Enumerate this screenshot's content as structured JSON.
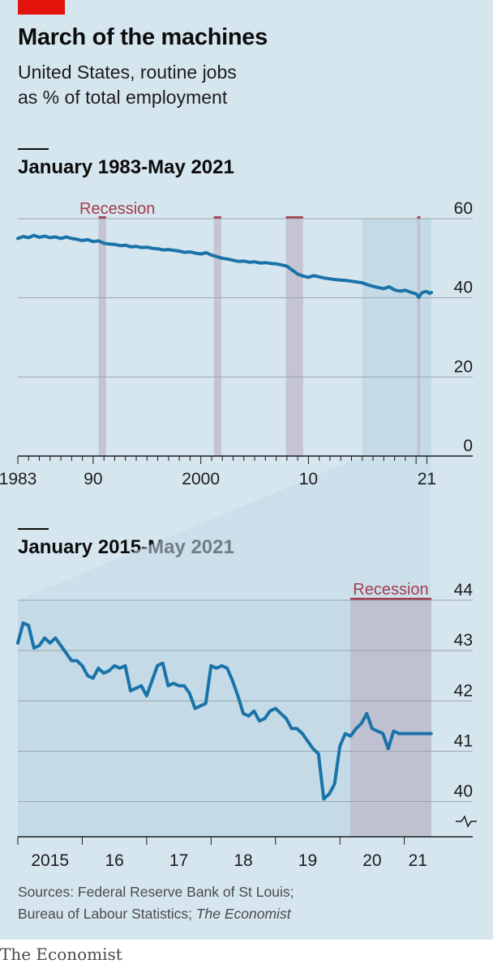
{
  "header": {
    "title": "March of the machines",
    "subtitle_line1": "United States, routine jobs",
    "subtitle_line2": "as % of total employment"
  },
  "colors": {
    "background": "#d6e6ef",
    "line": "#1a73a8",
    "recession": "#bfbccb",
    "recession_label": "#a33b4e",
    "accent_red": "#e3120b",
    "zoom": "#c4dbe7"
  },
  "chart_data": [
    {
      "type": "line",
      "title": "January 1983-May 2021",
      "xlim": [
        1983.0,
        2021.42
      ],
      "ylim": [
        0,
        60
      ],
      "y_ticks": [
        0,
        20,
        40,
        60
      ],
      "x_tick_labels": [
        {
          "value": 1983,
          "label": "1983"
        },
        {
          "value": 1990,
          "label": "90"
        },
        {
          "value": 2000,
          "label": "2000"
        },
        {
          "value": 2010,
          "label": "10"
        },
        {
          "value": 2021,
          "label": "21"
        }
      ],
      "grid": true,
      "recession_label": "Recession",
      "recessions": [
        [
          1990.5,
          1991.2
        ],
        [
          2001.2,
          2001.9
        ],
        [
          2007.9,
          2009.5
        ],
        [
          2020.1,
          2020.4
        ]
      ],
      "zoom_range": [
        2015.0,
        2021.42
      ],
      "x": [
        1983.0,
        1983.5,
        1984.0,
        1984.5,
        1985.0,
        1985.5,
        1986.0,
        1986.5,
        1987.0,
        1987.5,
        1988.0,
        1988.5,
        1989.0,
        1989.5,
        1990.0,
        1990.5,
        1991.0,
        1991.5,
        1992.0,
        1992.5,
        1993.0,
        1993.5,
        1994.0,
        1994.5,
        1995.0,
        1995.5,
        1996.0,
        1996.5,
        1997.0,
        1997.5,
        1998.0,
        1998.5,
        1999.0,
        1999.5,
        2000.0,
        2000.5,
        2001.0,
        2001.5,
        2002.0,
        2002.5,
        2003.0,
        2003.5,
        2004.0,
        2004.5,
        2005.0,
        2005.5,
        2006.0,
        2006.5,
        2007.0,
        2007.5,
        2008.0,
        2008.5,
        2009.0,
        2009.5,
        2010.0,
        2010.5,
        2011.0,
        2011.5,
        2012.0,
        2012.5,
        2013.0,
        2013.5,
        2014.0,
        2014.5,
        2015.0,
        2015.5,
        2016.0,
        2016.5,
        2017.0,
        2017.5,
        2018.0,
        2018.5,
        2019.0,
        2019.5,
        2020.0,
        2020.25,
        2020.5,
        2020.75,
        2021.0,
        2021.25,
        2021.42
      ],
      "values": [
        55.0,
        55.5,
        55.2,
        55.8,
        55.3,
        55.6,
        55.2,
        55.4,
        55.0,
        55.4,
        55.0,
        54.8,
        54.5,
        54.7,
        54.2,
        54.4,
        53.8,
        53.6,
        53.5,
        53.2,
        53.3,
        52.9,
        53.0,
        52.7,
        52.8,
        52.5,
        52.4,
        52.1,
        52.2,
        52.0,
        51.8,
        51.5,
        51.6,
        51.3,
        51.1,
        51.4,
        50.8,
        50.4,
        50.0,
        49.8,
        49.5,
        49.2,
        49.3,
        49.0,
        49.1,
        48.8,
        48.9,
        48.7,
        48.6,
        48.3,
        48.0,
        47.0,
        46.0,
        45.5,
        45.2,
        45.6,
        45.3,
        45.0,
        44.8,
        44.6,
        44.5,
        44.4,
        44.2,
        44.0,
        43.8,
        43.3,
        42.9,
        42.6,
        42.3,
        42.8,
        42.0,
        41.7,
        41.9,
        41.4,
        41.0,
        40.1,
        41.2,
        41.5,
        41.6,
        41.1,
        41.35
      ]
    },
    {
      "type": "line",
      "title": "January 2015-May 2021",
      "xlim": [
        2015.0,
        2021.42
      ],
      "ylim": [
        39.3,
        44
      ],
      "y_ticks": [
        40,
        41,
        42,
        43,
        44
      ],
      "y_axis_break": true,
      "x_tick_labels": [
        {
          "value": 2015.5,
          "label": "2015"
        },
        {
          "value": 2016.5,
          "label": "16"
        },
        {
          "value": 2017.5,
          "label": "17"
        },
        {
          "value": 2018.5,
          "label": "18"
        },
        {
          "value": 2019.5,
          "label": "19"
        },
        {
          "value": 2020.5,
          "label": "20"
        },
        {
          "value": 2021.21,
          "label": "21"
        }
      ],
      "x_year_ticks": [
        2015,
        2016,
        2017,
        2018,
        2019,
        2020,
        2021
      ],
      "grid": true,
      "recession_label": "Recession",
      "recessions": [
        [
          2020.16,
          2021.42
        ]
      ],
      "x": [
        2015.0,
        2015.0833,
        2015.1667,
        2015.25,
        2015.3333,
        2015.4167,
        2015.5,
        2015.5833,
        2015.6667,
        2015.75,
        2015.8333,
        2015.9167,
        2016.0,
        2016.0833,
        2016.1667,
        2016.25,
        2016.3333,
        2016.4167,
        2016.5,
        2016.5833,
        2016.6667,
        2016.75,
        2016.8333,
        2016.9167,
        2017.0,
        2017.0833,
        2017.1667,
        2017.25,
        2017.3333,
        2017.4167,
        2017.5,
        2017.5833,
        2017.6667,
        2017.75,
        2017.8333,
        2017.9167,
        2018.0,
        2018.0833,
        2018.1667,
        2018.25,
        2018.3333,
        2018.4167,
        2018.5,
        2018.5833,
        2018.6667,
        2018.75,
        2018.8333,
        2018.9167,
        2019.0,
        2019.0833,
        2019.1667,
        2019.25,
        2019.3333,
        2019.4167,
        2019.5,
        2019.5833,
        2019.6667,
        2019.75,
        2019.8333,
        2019.9167,
        2020.0,
        2020.0833,
        2020.1667,
        2020.25,
        2020.3333,
        2020.4167,
        2020.5,
        2020.5833,
        2020.6667,
        2020.75,
        2020.8333,
        2020.9167,
        2021.0,
        2021.0833,
        2021.1667,
        2021.25,
        2021.3333,
        2021.4167
      ],
      "values": [
        43.15,
        43.55,
        43.5,
        43.05,
        43.1,
        43.25,
        43.15,
        43.25,
        43.1,
        42.95,
        42.8,
        42.8,
        42.7,
        42.5,
        42.45,
        42.65,
        42.55,
        42.6,
        42.7,
        42.65,
        42.7,
        42.2,
        42.25,
        42.3,
        42.1,
        42.4,
        42.7,
        42.75,
        42.3,
        42.35,
        42.3,
        42.3,
        42.15,
        41.85,
        41.9,
        41.95,
        42.7,
        42.65,
        42.7,
        42.65,
        42.4,
        42.1,
        41.75,
        41.7,
        41.8,
        41.6,
        41.65,
        41.8,
        41.85,
        41.75,
        41.65,
        41.45,
        41.45,
        41.35,
        41.2,
        41.05,
        40.95,
        40.05,
        40.15,
        40.35,
        41.1,
        41.35,
        41.3,
        41.45,
        41.55,
        41.75,
        41.45,
        41.4,
        41.35,
        41.05,
        41.4,
        41.35,
        41.35,
        41.35,
        41.35,
        41.35,
        41.35,
        41.35
      ]
    }
  ],
  "footer": {
    "sources_line1": "Sources: Federal Reserve Bank of St Louis;",
    "sources_line2": "Bureau of Labour Statistics; ",
    "sources_italic": "The Economist",
    "brand": "The Economist"
  }
}
